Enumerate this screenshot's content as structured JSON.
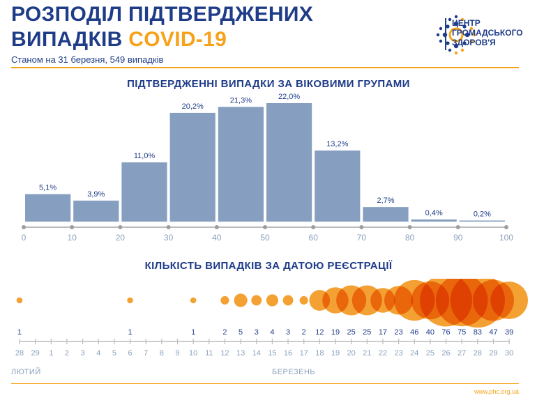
{
  "header": {
    "title_line1": "РОЗПОДІЛ ПІДТВЕРДЖЕНИХ",
    "title_line2_prefix": "ВИПАДКІВ ",
    "title_line2_accent": "COVID-19",
    "subtitle": "Станом на 31 березня, 549 випадків"
  },
  "logo": {
    "line1": "ЦЕНТР",
    "line2": "ГРОМАДСЬКОГО",
    "line3": "ЗДОРОВ'Я",
    "icon": "public-health-center-logo"
  },
  "colors": {
    "navy": "#1f3c88",
    "orange": "#f7a21b",
    "bar": "#869fc0",
    "axis": "#bcbcbc",
    "tick_label": "#8aa0bd",
    "dot_fill": "#f29111",
    "dot_overlap": "#e0440f"
  },
  "chart_data": [
    {
      "type": "bar",
      "title": "ПІДТВЕРДЖЕННІ ВИПАДКИ ЗА ВІКОВИМИ ГРУПАМИ",
      "x_ticks": [
        "0",
        "10",
        "20",
        "30",
        "40",
        "50",
        "60",
        "70",
        "80",
        "90",
        "100"
      ],
      "bins": [
        [
          0,
          10
        ],
        [
          10,
          20
        ],
        [
          20,
          30
        ],
        [
          30,
          40
        ],
        [
          40,
          50
        ],
        [
          50,
          60
        ],
        [
          60,
          70
        ],
        [
          70,
          80
        ],
        [
          80,
          90
        ],
        [
          90,
          100
        ]
      ],
      "values": [
        5.1,
        3.9,
        11.0,
        20.2,
        21.3,
        22.0,
        13.2,
        2.7,
        0.4,
        0.2
      ],
      "labels": [
        "5,1%",
        "3,9%",
        "11,0%",
        "20,2%",
        "21,3%",
        "22,0%",
        "13,2%",
        "2,7%",
        "0,4%",
        "0,2%"
      ],
      "ylim": [
        0,
        22
      ]
    },
    {
      "type": "scatter",
      "title": "КІЛЬКІСТЬ ВИПАДКІВ ЗА ДАТОЮ РЕЄСТРАЦІЇ",
      "dates": [
        "28",
        "29",
        "1",
        "2",
        "3",
        "4",
        "5",
        "6",
        "7",
        "8",
        "9",
        "10",
        "11",
        "12",
        "13",
        "14",
        "15",
        "16",
        "17",
        "18",
        "19",
        "20",
        "21",
        "22",
        "23",
        "24",
        "25",
        "26",
        "27",
        "28",
        "29",
        "30"
      ],
      "counts": [
        1,
        null,
        null,
        null,
        null,
        null,
        null,
        1,
        null,
        null,
        null,
        1,
        null,
        2,
        5,
        3,
        4,
        3,
        2,
        12,
        19,
        25,
        25,
        17,
        23,
        46,
        40,
        76,
        75,
        83,
        47,
        39
      ],
      "count_labels": [
        "1",
        "",
        "",
        "",
        "",
        "",
        "",
        "1",
        "",
        "",
        "",
        "1",
        "",
        "2",
        "5",
        "3",
        "4",
        "3",
        "2",
        "12",
        "19",
        "25",
        "25",
        "17",
        "23",
        "46",
        "40",
        "76",
        "75",
        "83",
        "47",
        "39"
      ],
      "months": [
        "ЛЮТИЙ",
        "БЕРЕЗЕНЬ"
      ]
    }
  ],
  "footer": {
    "url": "www.phc.org.ua"
  }
}
